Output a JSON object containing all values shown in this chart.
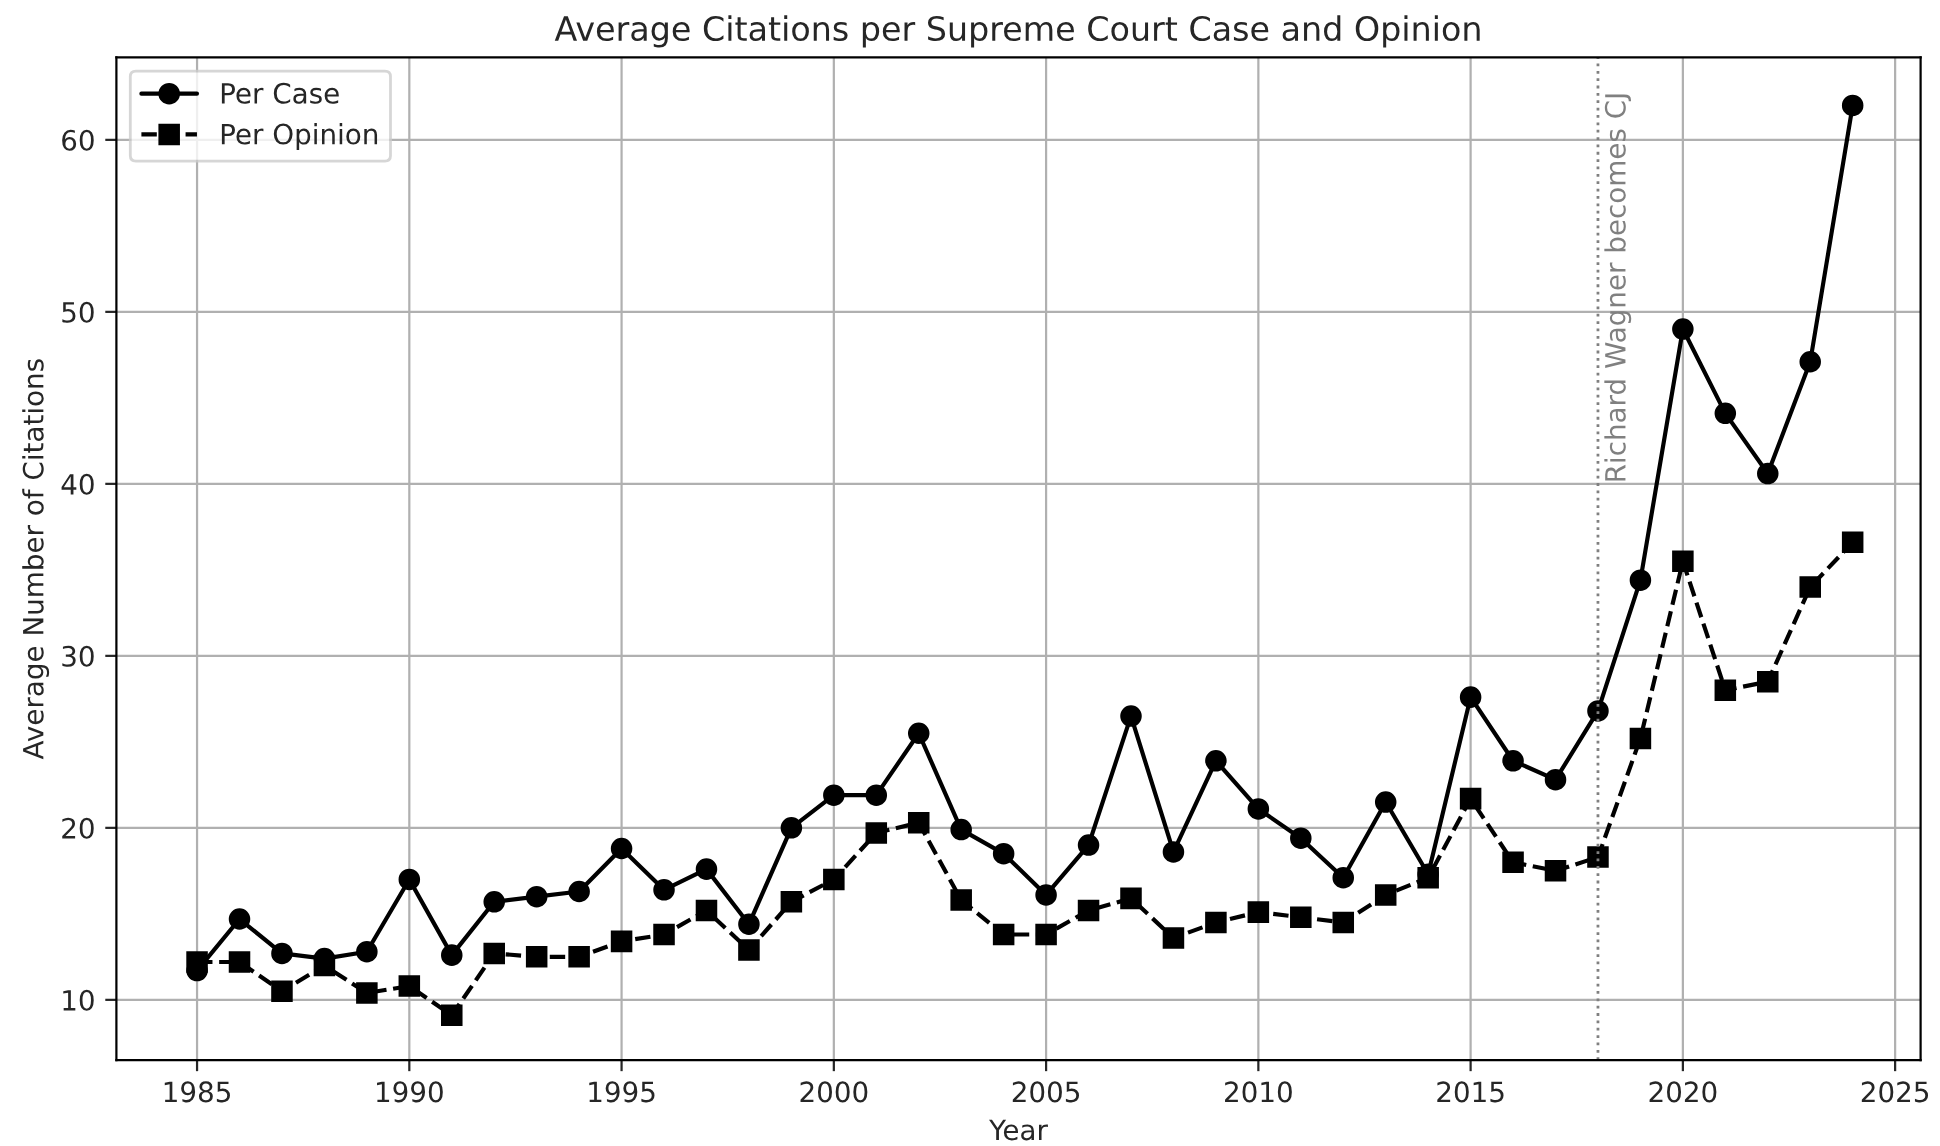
{
  "chart_data": {
    "type": "line",
    "title": "Average Citations per Supreme Court Case and Opinion",
    "xlabel": "Year",
    "ylabel": "Average Number of Citations",
    "x": [
      1985,
      1986,
      1987,
      1988,
      1989,
      1990,
      1991,
      1992,
      1993,
      1994,
      1995,
      1996,
      1997,
      1998,
      1999,
      2000,
      2001,
      2002,
      2003,
      2004,
      2005,
      2006,
      2007,
      2008,
      2009,
      2010,
      2011,
      2012,
      2013,
      2014,
      2015,
      2016,
      2017,
      2018,
      2019,
      2020,
      2021,
      2022,
      2023,
      2024
    ],
    "series": [
      {
        "name": "Per Case",
        "color": "#000000",
        "marker": "circle",
        "line_style": "solid",
        "values": [
          11.7,
          14.7,
          12.7,
          12.4,
          12.8,
          17.0,
          12.6,
          15.7,
          16.0,
          16.3,
          18.8,
          16.4,
          17.6,
          14.4,
          20.0,
          21.9,
          21.9,
          25.5,
          19.9,
          18.5,
          16.1,
          19.0,
          26.5,
          18.6,
          23.9,
          21.1,
          19.4,
          17.1,
          21.5,
          17.3,
          27.6,
          23.9,
          22.8,
          26.8,
          34.4,
          49.0,
          44.1,
          40.6,
          47.1,
          62.0
        ]
      },
      {
        "name": "Per Opinion",
        "color": "#000000",
        "marker": "square",
        "line_style": "dashed",
        "values": [
          12.2,
          12.2,
          10.5,
          12.0,
          10.4,
          10.8,
          9.1,
          12.7,
          12.5,
          12.5,
          13.4,
          13.8,
          15.2,
          12.9,
          15.7,
          17.0,
          19.7,
          20.3,
          15.8,
          13.8,
          13.8,
          15.2,
          15.9,
          13.6,
          14.5,
          15.1,
          14.8,
          14.5,
          16.1,
          17.1,
          21.7,
          18.0,
          17.5,
          18.3,
          25.2,
          35.5,
          28.0,
          28.5,
          34.0,
          36.6
        ]
      }
    ],
    "xlim": [
      1983.1,
      2025.6
    ],
    "xticks": [
      1985,
      1990,
      1995,
      2000,
      2005,
      2010,
      2015,
      2020,
      2025
    ],
    "ylim": [
      6.5,
      64.8
    ],
    "yticks": [
      10,
      20,
      30,
      40,
      50,
      60
    ],
    "ref_lines": [
      {
        "axis": "x",
        "value": 2018,
        "label": "Richard Wagner becomes CJ",
        "color": "#808080",
        "line_style": "dotted"
      }
    ],
    "grid": true,
    "legend": "top left"
  }
}
